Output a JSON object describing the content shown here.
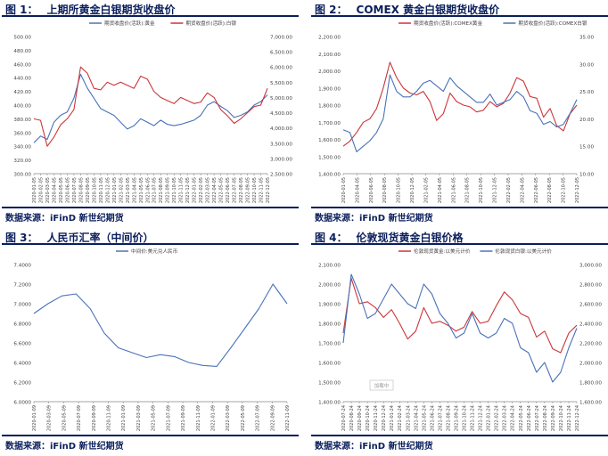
{
  "panels": [
    {
      "fig_label": "图 1：",
      "title": "上期所黄金白银期货收盘价",
      "source": "数据来源：iFinD  新世纪期货"
    },
    {
      "fig_label": "图 2：",
      "title": "COMEX 黄金白银期货收盘价",
      "source": "数据来源：iFinD  新世纪期货"
    },
    {
      "fig_label": "图 3：",
      "title": "人民币汇率（中间价）",
      "source": "数据来源：iFinD  新世纪期货"
    },
    {
      "fig_label": "图 4：",
      "title": "伦敦现货黄金白银价格",
      "source": "数据来源：iFinD  新世纪期货"
    }
  ],
  "chart_data": [
    {
      "type": "line",
      "colors": [
        "#4a72b8",
        "#c9363a"
      ],
      "legend_position": "top",
      "grid": false,
      "x": [
        "2020-01-05",
        "2020-02-05",
        "2020-03-05",
        "2020-04-05",
        "2020-05-05",
        "2020-06-05",
        "2020-07-05",
        "2020-08-05",
        "2020-09-05",
        "2020-10-05",
        "2020-11-05",
        "2020-12-05",
        "2021-01-05",
        "2021-02-05",
        "2021-03-05",
        "2021-04-05",
        "2021-05-05",
        "2021-06-05",
        "2021-07-05",
        "2021-08-05",
        "2021-09-05",
        "2021-10-05",
        "2021-11-05",
        "2021-12-05",
        "2022-01-05",
        "2022-02-05",
        "2022-03-05",
        "2022-04-05",
        "2022-05-05",
        "2022-06-05",
        "2022-07-05",
        "2022-08-05",
        "2022-09-05",
        "2022-10-05",
        "2022-11-05",
        "2022-12-05"
      ],
      "x_ticks": [
        "2020-01-05",
        "2020-02-05",
        "2020-03-05",
        "2020-04-05",
        "2020-05-05",
        "2020-06-05",
        "2020-07-05",
        "2020-08-05",
        "2020-09-05",
        "2020-10-05",
        "2020-11-05",
        "2020-12-05",
        "2021-01-05",
        "2021-02-05",
        "2021-03-05",
        "2021-04-05",
        "2021-05-05",
        "2021-06-05",
        "2021-07-05",
        "2021-08-05",
        "2021-09-05",
        "2021-10-05",
        "2021-11-05",
        "2021-12-05",
        "2022-01-05",
        "2022-02-05",
        "2022-03-05",
        "2022-04-05",
        "2022-05-05",
        "2022-06-05",
        "2022-07-05",
        "2022-08-05",
        "2022-09-05",
        "2022-10-05",
        "2022-11-05",
        "2022-12-05"
      ],
      "ylim": [
        300,
        500
      ],
      "y_ticks": [
        "500.00",
        "480.00",
        "460.00",
        "440.00",
        "420.00",
        "400.00",
        "380.00",
        "360.00",
        "340.00",
        "320.00",
        "300.00"
      ],
      "y2lim": [
        2500,
        7000
      ],
      "y2_ticks": [
        "7,000.00",
        "6,500.00",
        "6,000.00",
        "5,500.00",
        "5,000.00",
        "4,500.00",
        "4,000.00",
        "3,500.00",
        "3,000.00",
        "2,500.00"
      ],
      "series": [
        {
          "name": "期货收盘价(活跃):黄金",
          "axis": "left",
          "values": [
            345,
            355,
            350,
            375,
            385,
            390,
            410,
            445,
            425,
            410,
            395,
            390,
            385,
            375,
            365,
            370,
            380,
            375,
            370,
            378,
            372,
            370,
            372,
            375,
            378,
            385,
            400,
            405,
            398,
            392,
            382,
            385,
            390,
            400,
            405,
            415
          ]
        },
        {
          "name": "期货收盘价(活跃):白银",
          "axis": "right",
          "values": [
            4300,
            4250,
            3400,
            3700,
            4100,
            4300,
            4600,
            6000,
            5800,
            5300,
            5250,
            5500,
            5400,
            5500,
            5400,
            5300,
            5700,
            5600,
            5200,
            5000,
            4900,
            4800,
            5000,
            4900,
            4800,
            4850,
            5150,
            5000,
            4600,
            4400,
            4150,
            4300,
            4500,
            4700,
            4750,
            5300
          ]
        }
      ]
    },
    {
      "type": "line",
      "colors": [
        "#c9363a",
        "#4a72b8"
      ],
      "legend_position": "top",
      "grid": false,
      "x": [
        "2020-01-05",
        "2020-02-05",
        "2020-03-05",
        "2020-04-05",
        "2020-05-05",
        "2020-06-05",
        "2020-07-05",
        "2020-08-05",
        "2020-09-05",
        "2020-10-05",
        "2020-11-05",
        "2020-12-05",
        "2021-01-05",
        "2021-02-05",
        "2021-03-05",
        "2021-04-05",
        "2021-05-05",
        "2021-06-05",
        "2021-07-05",
        "2021-08-05",
        "2021-09-05",
        "2021-10-05",
        "2021-11-05",
        "2021-12-05",
        "2022-01-05",
        "2022-02-05",
        "2022-03-05",
        "2022-04-05",
        "2022-05-05",
        "2022-06-05",
        "2022-07-05",
        "2022-08-05",
        "2022-09-05",
        "2022-10-05",
        "2022-11-05",
        "2022-12-05"
      ],
      "x_ticks": [
        "2020-01-05",
        "2020-04-05",
        "2020-06-05",
        "2020-08-05",
        "2020-10-05",
        "2020-12-05",
        "2021-02-05",
        "2021-04-05",
        "2021-06-05",
        "2021-08-05",
        "2021-10-05",
        "2021-12-05",
        "2022-02-05",
        "2022-04-05",
        "2022-06-05",
        "2022-08-05",
        "2022-10-05",
        "2022-12-05"
      ],
      "ylim": [
        1400,
        2200
      ],
      "y_ticks": [
        "2,200.00",
        "2,100.00",
        "2,000.00",
        "1,900.00",
        "1,800.00",
        "1,700.00",
        "1,600.00",
        "1,500.00",
        "1,400.00"
      ],
      "y2lim": [
        10,
        35
      ],
      "y2_ticks": [
        "35.00",
        "30.00",
        "25.00",
        "20.00",
        "15.00",
        "10.00"
      ],
      "series": [
        {
          "name": "期货收盘价(活跃):COMEX黄金",
          "axis": "left",
          "values": [
            1560,
            1590,
            1640,
            1700,
            1720,
            1780,
            1900,
            2050,
            1960,
            1900,
            1870,
            1860,
            1880,
            1820,
            1710,
            1750,
            1870,
            1820,
            1800,
            1790,
            1760,
            1770,
            1820,
            1790,
            1810,
            1870,
            1960,
            1940,
            1850,
            1840,
            1730,
            1780,
            1680,
            1650,
            1750,
            1800
          ]
        },
        {
          "name": "期货收盘价(活跃):COMEX白银",
          "axis": "right",
          "values": [
            18,
            17.5,
            14,
            15,
            16,
            17.5,
            20,
            28,
            25,
            24,
            24,
            25,
            26.5,
            27,
            26,
            25,
            27.5,
            26,
            25,
            24,
            23,
            23,
            24.5,
            22.5,
            23,
            23.5,
            25,
            24,
            21.5,
            21,
            19,
            19.5,
            18.5,
            19,
            21,
            23.5
          ]
        }
      ]
    },
    {
      "type": "line",
      "colors": [
        "#4a72b8"
      ],
      "legend_position": "top",
      "grid": false,
      "x": [
        "2020-01-09",
        "2020-03-09",
        "2020-05-09",
        "2020-07-09",
        "2020-09-09",
        "2020-11-09",
        "2021-01-09",
        "2021-03-09",
        "2021-05-09",
        "2021-07-09",
        "2021-09-09",
        "2021-11-09",
        "2022-01-09",
        "2022-03-09",
        "2022-05-09",
        "2022-07-09",
        "2022-09-09",
        "2022-11-09",
        "2022-12-09"
      ],
      "x_ticks": [
        "2020-01-09",
        "2020-03-09",
        "2020-05-09",
        "2020-07-09",
        "2020-09-09",
        "2020-11-09",
        "2021-01-09",
        "2021-03-09",
        "2021-05-09",
        "2021-07-09",
        "2021-09-09",
        "2021-11-09",
        "2022-01-09",
        "2022-03-09",
        "2022-05-09",
        "2022-07-09",
        "2022-09-09",
        "2022-11-09"
      ],
      "ylim": [
        6.0,
        7.4
      ],
      "y_ticks": [
        "7.4000",
        "7.2000",
        "7.0000",
        "6.8000",
        "6.6000",
        "6.4000",
        "6.2000",
        "6.0000"
      ],
      "series": [
        {
          "name": "中间价:美元兑人民币",
          "values": [
            6.9,
            7.0,
            7.08,
            7.1,
            6.95,
            6.7,
            6.55,
            6.5,
            6.45,
            6.48,
            6.46,
            6.4,
            6.37,
            6.36,
            6.55,
            6.75,
            6.95,
            7.2,
            7.0
          ]
        }
      ]
    },
    {
      "type": "line",
      "colors": [
        "#c9363a",
        "#4a72b8"
      ],
      "legend_position": "top",
      "grid": false,
      "watermark": "加载中",
      "x": [
        "2020-07-24",
        "2020-08-24",
        "2020-09-24",
        "2020-10-24",
        "2020-11-24",
        "2020-12-24",
        "2021-01-24",
        "2021-02-24",
        "2021-03-24",
        "2021-04-24",
        "2021-05-24",
        "2021-06-24",
        "2021-07-24",
        "2021-08-24",
        "2021-09-24",
        "2021-10-24",
        "2021-11-24",
        "2021-12-24",
        "2022-01-24",
        "2022-02-24",
        "2022-03-24",
        "2022-04-24",
        "2022-05-24",
        "2022-06-24",
        "2022-07-24",
        "2022-08-24",
        "2022-09-24",
        "2022-10-24",
        "2022-11-24",
        "2022-12-24"
      ],
      "x_ticks": [
        "2020-07-24",
        "2020-08-24",
        "2020-09-24",
        "2020-10-24",
        "2020-11-24",
        "2020-12-24",
        "2021-01-24",
        "2021-02-24",
        "2021-03-24",
        "2021-04-24",
        "2021-05-24",
        "2021-06-24",
        "2021-07-24",
        "2021-08-24",
        "2021-09-24",
        "2021-10-24",
        "2021-11-24",
        "2021-12-24",
        "2022-01-24",
        "2022-02-24",
        "2022-03-24",
        "2022-04-24",
        "2022-05-24",
        "2022-06-24",
        "2022-07-24",
        "2022-08-24",
        "2022-09-24",
        "2022-10-24",
        "2022-11-24",
        "2022-12-24"
      ],
      "ylim": [
        1400,
        2100
      ],
      "y_ticks": [
        "2,100.00",
        "2,000.00",
        "1,900.00",
        "1,800.00",
        "1,700.00",
        "1,600.00",
        "1,500.00",
        "1,400.00"
      ],
      "y2lim": [
        1600,
        3000
      ],
      "y2_ticks": [
        "3,000.00",
        "2,800.00",
        "2,600.00",
        "2,400.00",
        "2,200.00",
        "2,000.00",
        "1,800.00",
        "1,600.00"
      ],
      "series": [
        {
          "name": "伦敦现货黄金:以美元计价",
          "axis": "left",
          "values": [
            1750,
            2030,
            1900,
            1910,
            1880,
            1830,
            1870,
            1800,
            1720,
            1760,
            1880,
            1800,
            1810,
            1790,
            1760,
            1780,
            1860,
            1800,
            1810,
            1890,
            1960,
            1920,
            1850,
            1830,
            1730,
            1760,
            1670,
            1650,
            1750,
            1790
          ]
        },
        {
          "name": "伦敦现货白银:以美元计价",
          "axis": "right",
          "values": [
            2200,
            2900,
            2700,
            2450,
            2500,
            2650,
            2800,
            2700,
            2600,
            2550,
            2800,
            2700,
            2500,
            2400,
            2250,
            2300,
            2500,
            2300,
            2250,
            2300,
            2450,
            2400,
            2150,
            2100,
            1900,
            2000,
            1800,
            1900,
            2150,
            2350
          ]
        }
      ]
    }
  ]
}
